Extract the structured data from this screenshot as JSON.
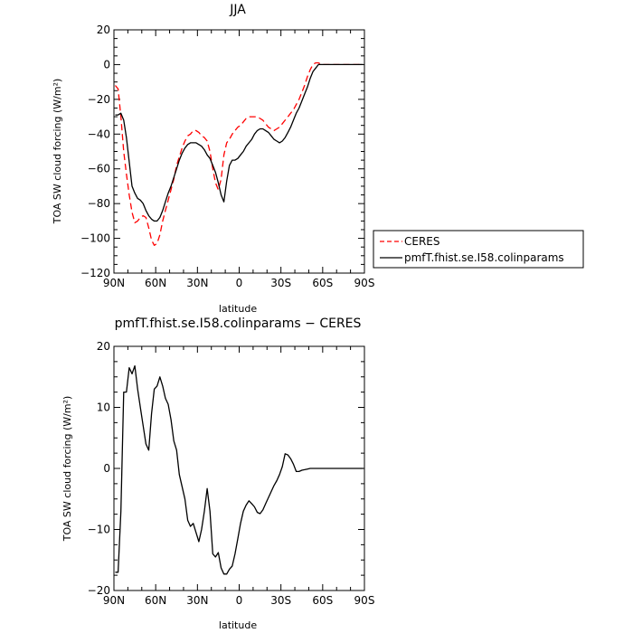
{
  "chart_data": [
    {
      "type": "line",
      "title": "JJA",
      "xlabel": "latitude",
      "ylabel": "TOA SW cloud forcing (W/m²)",
      "x_tick_labels": [
        "90N",
        "60N",
        "30N",
        "0",
        "30S",
        "60S",
        "90S"
      ],
      "x_tick_values": [
        90,
        60,
        30,
        0,
        -30,
        -60,
        -90
      ],
      "xlim": [
        90,
        -90
      ],
      "ylim": [
        -120,
        20
      ],
      "y_ticks": [
        20,
        0,
        -20,
        -40,
        -60,
        -80,
        -100,
        -120
      ],
      "grid": false,
      "legend": "right-of-plot",
      "series": [
        {
          "name": "CERES",
          "color": "#ff0000",
          "dash": "dashed",
          "x": [
            89,
            87,
            85,
            83,
            81,
            79,
            77,
            75,
            73,
            71,
            69,
            67,
            65,
            63,
            61,
            59,
            57,
            55,
            53,
            51,
            49,
            47,
            45,
            43,
            41,
            39,
            37,
            35,
            33,
            31,
            29,
            27,
            25,
            23,
            21,
            19,
            17,
            15,
            13,
            11,
            9,
            7,
            5,
            3,
            1,
            -1,
            -3,
            -5,
            -7,
            -9,
            -11,
            -13,
            -15,
            -17,
            -19,
            -21,
            -23,
            -25,
            -27,
            -29,
            -31,
            -33,
            -35,
            -37,
            -39,
            -41,
            -43,
            -45,
            -47,
            -49,
            -51,
            -53,
            -55,
            -57,
            -59,
            -61,
            -63,
            -65,
            -67,
            -69,
            -71,
            -73,
            -75,
            -77,
            -79,
            -81,
            -83,
            -85,
            -87,
            -89
          ],
          "values": [
            -12,
            -14,
            -30,
            -50,
            -63,
            -75,
            -85,
            -91,
            -90,
            -88,
            -87,
            -88,
            -94,
            -101,
            -104,
            -103,
            -98,
            -90,
            -84,
            -78,
            -72,
            -66,
            -58,
            -53,
            -48,
            -44,
            -41,
            -40,
            -38,
            -38,
            -39,
            -41,
            -42,
            -44,
            -50,
            -60,
            -68,
            -72,
            -66,
            -52,
            -45,
            -43,
            -40,
            -38,
            -36,
            -35,
            -33,
            -31,
            -30,
            -30,
            -30,
            -30,
            -31,
            -32,
            -34,
            -36,
            -37,
            -38,
            -37,
            -36,
            -34,
            -32,
            -30,
            -28,
            -26,
            -23,
            -20,
            -16,
            -12,
            -7,
            -3,
            0,
            1,
            1,
            0,
            0,
            0,
            0,
            0,
            0,
            0,
            0,
            0,
            0,
            0,
            0,
            0,
            0,
            0,
            0
          ]
        },
        {
          "name": "pmfT.fhist.se.I58.colinparams",
          "color": "#000000",
          "dash": "solid",
          "x": [
            89,
            87,
            85,
            83,
            81,
            79,
            77,
            75,
            73,
            71,
            69,
            67,
            65,
            63,
            61,
            59,
            57,
            55,
            53,
            51,
            49,
            47,
            45,
            43,
            41,
            39,
            37,
            35,
            33,
            31,
            29,
            27,
            25,
            23,
            21,
            19,
            17,
            15,
            13,
            11,
            9,
            7,
            5,
            3,
            1,
            -1,
            -3,
            -5,
            -7,
            -9,
            -11,
            -13,
            -15,
            -17,
            -19,
            -21,
            -23,
            -25,
            -27,
            -29,
            -31,
            -33,
            -35,
            -37,
            -39,
            -41,
            -43,
            -45,
            -47,
            -49,
            -51,
            -53,
            -55,
            -57,
            -59,
            -61,
            -63,
            -65,
            -67,
            -69,
            -71,
            -73,
            -75,
            -77,
            -79,
            -81,
            -83,
            -85,
            -87,
            -89
          ],
          "values": [
            -29,
            -29,
            -28,
            -32,
            -42,
            -56,
            -70,
            -74,
            -77,
            -78,
            -80,
            -84,
            -87,
            -89,
            -90,
            -90,
            -88,
            -84,
            -79,
            -74,
            -70,
            -65,
            -60,
            -55,
            -51,
            -48,
            -46,
            -45,
            -45,
            -45,
            -46,
            -47,
            -49,
            -52,
            -54,
            -58,
            -62,
            -68,
            -75,
            -79,
            -67,
            -58,
            -55,
            -55,
            -54,
            -52,
            -50,
            -47,
            -45,
            -43,
            -40,
            -38,
            -37,
            -37,
            -38,
            -39,
            -41,
            -43,
            -44,
            -45,
            -44,
            -42,
            -39,
            -36,
            -32,
            -28,
            -25,
            -21,
            -17,
            -13,
            -8,
            -4,
            -2,
            0,
            0,
            0,
            0,
            0,
            0,
            0,
            0,
            0,
            0,
            0,
            0,
            0,
            0,
            0,
            0,
            0
          ]
        }
      ]
    },
    {
      "type": "line",
      "title": "pmfT.fhist.se.I58.colinparams − CERES",
      "xlabel": "latitude",
      "ylabel": "TOA SW cloud forcing (W/m²)",
      "x_tick_labels": [
        "90N",
        "60N",
        "30N",
        "0",
        "30S",
        "60S",
        "90S"
      ],
      "x_tick_values": [
        90,
        60,
        30,
        0,
        -30,
        -60,
        -90
      ],
      "xlim": [
        90,
        -90
      ],
      "ylim": [
        -20,
        20
      ],
      "y_ticks": [
        20,
        10,
        0,
        -10,
        -20
      ],
      "grid": false,
      "series": [
        {
          "color": "#000000",
          "dash": "solid",
          "x": [
            89,
            87,
            85,
            83,
            81,
            79,
            77,
            75,
            73,
            71,
            69,
            67,
            65,
            63,
            61,
            59,
            57,
            55,
            53,
            51,
            49,
            47,
            45,
            43,
            41,
            39,
            37,
            35,
            33,
            31,
            29,
            27,
            25,
            23,
            21,
            19,
            17,
            15,
            13,
            11,
            9,
            7,
            5,
            3,
            1,
            -1,
            -3,
            -5,
            -7,
            -9,
            -11,
            -13,
            -15,
            -17,
            -19,
            -21,
            -23,
            -25,
            -27,
            -29,
            -31,
            -33,
            -35,
            -37,
            -39,
            -41,
            -43,
            -45,
            -47,
            -49,
            -51,
            -53,
            -55,
            -57,
            -59,
            -61,
            -63,
            -65,
            -67,
            -69,
            -71,
            -73,
            -75,
            -77,
            -79,
            -81,
            -83,
            -85,
            -87,
            -89
          ],
          "values": [
            -17,
            -17,
            -7,
            12.5,
            12.5,
            16.5,
            15.5,
            16.8,
            13,
            10,
            7,
            4,
            3,
            9,
            13,
            13.5,
            15,
            13.5,
            11.5,
            10.5,
            8,
            4.5,
            3,
            -1,
            -3,
            -5,
            -8.5,
            -9.5,
            -9,
            -10.5,
            -12,
            -10,
            -7,
            -3.3,
            -7,
            -14,
            -14.5,
            -13.8,
            -16.3,
            -17.3,
            -17.3,
            -16.5,
            -16,
            -14,
            -11.5,
            -9,
            -7,
            -6,
            -5.3,
            -5.8,
            -6.3,
            -7.2,
            -7.4,
            -6.8,
            -5.8,
            -4.8,
            -3.8,
            -2.8,
            -2,
            -1,
            0.3,
            2.4,
            2.2,
            1.6,
            0.7,
            -0.5,
            -0.5,
            -0.3,
            -0.2,
            -0.1,
            0,
            0,
            0,
            0,
            0,
            0,
            0,
            0,
            0,
            0,
            0,
            0,
            0,
            0,
            0,
            0,
            0,
            0,
            0,
            0
          ]
        }
      ]
    }
  ]
}
